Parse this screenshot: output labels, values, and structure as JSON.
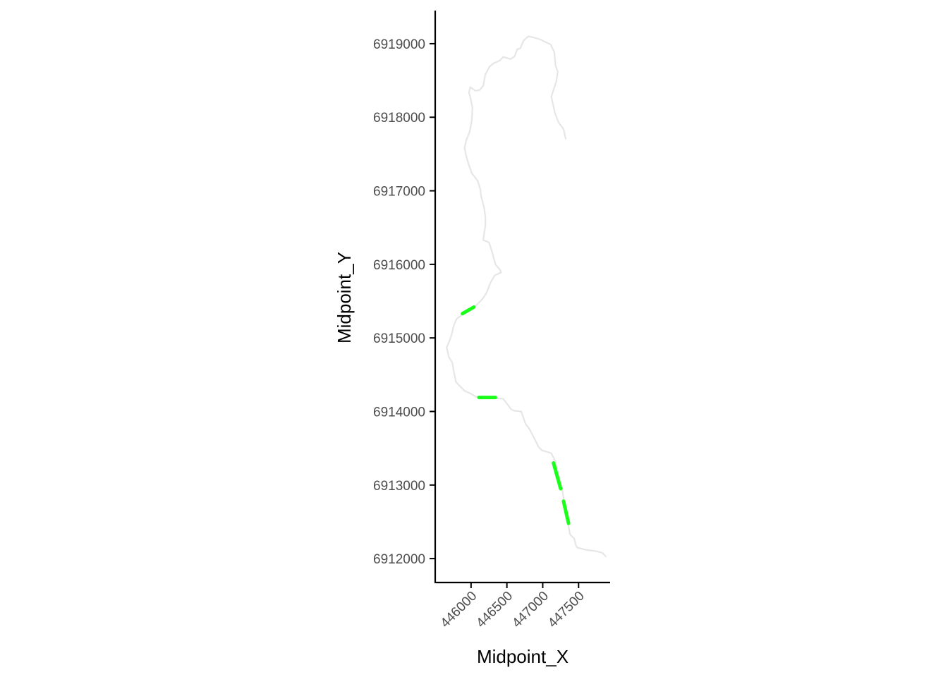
{
  "chart_data": {
    "type": "line",
    "title": "",
    "xlabel": "Midpoint_X",
    "ylabel": "Midpoint_Y",
    "xlim": [
      445500,
      447950
    ],
    "ylim": [
      6911675,
      6919450
    ],
    "x_ticks": [
      446000,
      446500,
      447000,
      447500
    ],
    "x_tick_labels": [
      "446000",
      "446500",
      "447000",
      "447500"
    ],
    "y_ticks": [
      6912000,
      6913000,
      6914000,
      6915000,
      6916000,
      6917000,
      6918000,
      6919000
    ],
    "y_tick_labels": [
      "6912000",
      "6913000",
      "6914000",
      "6915000",
      "6916000",
      "6917000",
      "6918000",
      "6919000"
    ],
    "grid": false,
    "legend": "none",
    "series": [
      {
        "role": "river-path",
        "color": "#e6e6e6",
        "points": [
          [
            447320,
            6917710
          ],
          [
            447290,
            6917840
          ],
          [
            447220,
            6917930
          ],
          [
            447170,
            6918060
          ],
          [
            447120,
            6918280
          ],
          [
            447190,
            6918490
          ],
          [
            447210,
            6918620
          ],
          [
            447180,
            6918700
          ],
          [
            447160,
            6918890
          ],
          [
            447110,
            6918990
          ],
          [
            447020,
            6919030
          ],
          [
            446960,
            6919060
          ],
          [
            446850,
            6919090
          ],
          [
            446800,
            6919100
          ],
          [
            446730,
            6919040
          ],
          [
            446690,
            6918940
          ],
          [
            446640,
            6918920
          ],
          [
            446610,
            6918830
          ],
          [
            446550,
            6918790
          ],
          [
            446450,
            6918820
          ],
          [
            446400,
            6918770
          ],
          [
            446310,
            6918730
          ],
          [
            446260,
            6918690
          ],
          [
            446200,
            6918580
          ],
          [
            446170,
            6918430
          ],
          [
            446120,
            6918370
          ],
          [
            446060,
            6918360
          ],
          [
            445990,
            6918410
          ],
          [
            445970,
            6918340
          ],
          [
            445990,
            6918270
          ],
          [
            446020,
            6918130
          ],
          [
            446010,
            6917950
          ],
          [
            445980,
            6917800
          ],
          [
            445930,
            6917680
          ],
          [
            445910,
            6917580
          ],
          [
            445930,
            6917480
          ],
          [
            445970,
            6917350
          ],
          [
            446010,
            6917240
          ],
          [
            446090,
            6917140
          ],
          [
            446130,
            6917020
          ],
          [
            446140,
            6916930
          ],
          [
            446180,
            6916780
          ],
          [
            446200,
            6916650
          ],
          [
            446200,
            6916530
          ],
          [
            446170,
            6916330
          ],
          [
            446250,
            6916300
          ],
          [
            446290,
            6916180
          ],
          [
            446340,
            6916000
          ],
          [
            446400,
            6915930
          ],
          [
            446420,
            6915890
          ],
          [
            446330,
            6915850
          ],
          [
            446270,
            6915750
          ],
          [
            446220,
            6915620
          ],
          [
            446160,
            6915530
          ],
          [
            446040,
            6915410
          ],
          [
            445980,
            6915380
          ],
          [
            445870,
            6915310
          ],
          [
            445800,
            6915260
          ],
          [
            445760,
            6915170
          ],
          [
            445730,
            6915050
          ],
          [
            445700,
            6914960
          ],
          [
            445660,
            6914870
          ],
          [
            445690,
            6914740
          ],
          [
            445740,
            6914660
          ],
          [
            445760,
            6914540
          ],
          [
            445790,
            6914400
          ],
          [
            445910,
            6914280
          ],
          [
            446000,
            6914240
          ],
          [
            446070,
            6914200
          ],
          [
            446200,
            6914190
          ],
          [
            446280,
            6914190
          ],
          [
            446340,
            6914180
          ],
          [
            446450,
            6914170
          ],
          [
            446490,
            6914120
          ],
          [
            446560,
            6914030
          ],
          [
            446600,
            6914010
          ],
          [
            446700,
            6914000
          ],
          [
            446760,
            6913830
          ],
          [
            446810,
            6913770
          ],
          [
            446890,
            6913620
          ],
          [
            446940,
            6913520
          ],
          [
            446990,
            6913470
          ],
          [
            447070,
            6913450
          ],
          [
            447120,
            6913430
          ],
          [
            447180,
            6913320
          ],
          [
            447220,
            6913130
          ],
          [
            447260,
            6913000
          ],
          [
            447300,
            6912770
          ],
          [
            447330,
            6912600
          ],
          [
            447360,
            6912440
          ],
          [
            447380,
            6912330
          ],
          [
            447440,
            6912270
          ],
          [
            447460,
            6912190
          ],
          [
            447480,
            6912150
          ],
          [
            447600,
            6912120
          ],
          [
            447750,
            6912100
          ],
          [
            447830,
            6912080
          ],
          [
            447880,
            6912030
          ]
        ]
      },
      {
        "role": "highlighted-segments",
        "color": "#1aff1a",
        "segments": [
          [
            [
              445880,
              6915330
            ],
            [
              446040,
              6915420
            ]
          ],
          [
            [
              446110,
              6914190
            ],
            [
              446340,
              6914190
            ]
          ],
          [
            [
              447150,
              6913300
            ],
            [
              447250,
              6912950
            ]
          ],
          [
            [
              447290,
              6912780
            ],
            [
              447360,
              6912480
            ]
          ]
        ]
      }
    ]
  }
}
